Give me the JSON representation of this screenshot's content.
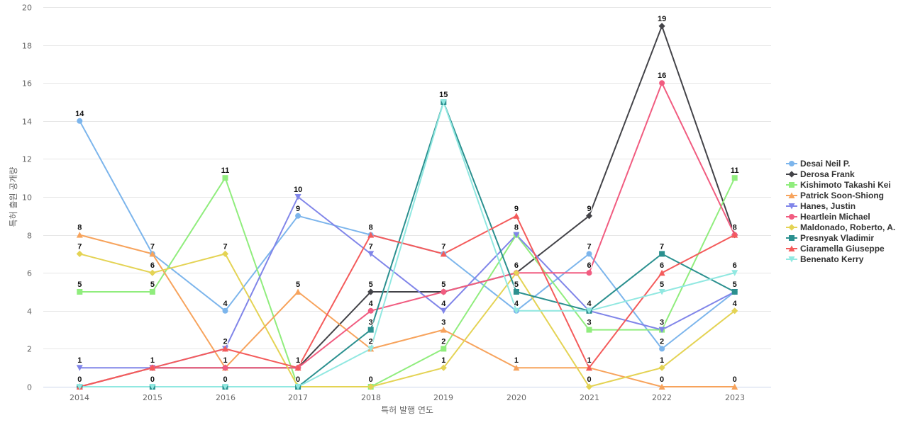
{
  "chart_data": {
    "type": "line",
    "title": "",
    "xlabel": "특허 발행 연도",
    "ylabel": "특허 출원 공개량",
    "ylim": [
      0,
      20
    ],
    "yticks": [
      0,
      2,
      4,
      6,
      8,
      10,
      12,
      14,
      16,
      18,
      20
    ],
    "x": [
      "2014",
      "2015",
      "2016",
      "2017",
      "2018",
      "2019",
      "2020",
      "2021",
      "2022",
      "2023"
    ],
    "grid": true,
    "legend": "right",
    "series": [
      {
        "name": "Desai Neil P.",
        "color": "#7cb5ec",
        "marker": "circle",
        "values": [
          14,
          7,
          4,
          9,
          8,
          7,
          4,
          7,
          2,
          5
        ]
      },
      {
        "name": "Derosa Frank",
        "color": "#434348",
        "marker": "diamond",
        "values": [
          0,
          1,
          1,
          1,
          5,
          5,
          6,
          9,
          19,
          8
        ]
      },
      {
        "name": "Kishimoto Takashi Kei",
        "color": "#90ed7d",
        "marker": "square",
        "values": [
          5,
          5,
          11,
          0,
          0,
          2,
          8,
          3,
          3,
          11
        ]
      },
      {
        "name": "Patrick Soon-Shiong",
        "color": "#f7a35c",
        "marker": "triangle",
        "values": [
          8,
          7,
          1,
          5,
          2,
          3,
          1,
          1,
          0,
          0
        ]
      },
      {
        "name": "Hanes, Justin",
        "color": "#8085e9",
        "marker": "triangle-down",
        "values": [
          1,
          1,
          2,
          10,
          7,
          4,
          8,
          4,
          3,
          5
        ]
      },
      {
        "name": "Heartlein Michael",
        "color": "#f15c80",
        "marker": "circle",
        "values": [
          0,
          1,
          1,
          1,
          4,
          5,
          6,
          6,
          16,
          8
        ]
      },
      {
        "name": "Maldonado, Roberto, A.",
        "color": "#e4d354",
        "marker": "diamond",
        "values": [
          7,
          6,
          7,
          0,
          0,
          1,
          6,
          0,
          1,
          4
        ]
      },
      {
        "name": "Presnyak Vladimir",
        "color": "#2b908f",
        "marker": "square",
        "values": [
          0,
          0,
          0,
          0,
          3,
          15,
          5,
          4,
          7,
          5
        ]
      },
      {
        "name": "Ciaramella Giuseppe",
        "color": "#f45b5b",
        "marker": "triangle",
        "values": [
          0,
          1,
          2,
          1,
          8,
          7,
          9,
          1,
          6,
          8
        ]
      },
      {
        "name": "Benenato Kerry",
        "color": "#91e8e1",
        "marker": "triangle-down",
        "values": [
          0,
          0,
          0,
          0,
          2,
          15,
          4,
          4,
          5,
          6
        ]
      }
    ],
    "data_labels": [
      [
        "2014",
        14
      ],
      [
        "2014",
        8
      ],
      [
        "2014",
        7
      ],
      [
        "2014",
        5
      ],
      [
        "2014",
        1
      ],
      [
        "2014",
        0
      ],
      [
        "2015",
        7
      ],
      [
        "2015",
        6
      ],
      [
        "2015",
        5
      ],
      [
        "2015",
        1
      ],
      [
        "2015",
        0
      ],
      [
        "2016",
        11
      ],
      [
        "2016",
        7
      ],
      [
        "2016",
        4
      ],
      [
        "2016",
        2
      ],
      [
        "2016",
        1
      ],
      [
        "2016",
        0
      ],
      [
        "2017",
        10
      ],
      [
        "2017",
        9
      ],
      [
        "2017",
        5
      ],
      [
        "2017",
        1
      ],
      [
        "2017",
        0
      ],
      [
        "2018",
        8
      ],
      [
        "2018",
        7
      ],
      [
        "2018",
        5
      ],
      [
        "2018",
        4
      ],
      [
        "2018",
        3
      ],
      [
        "2018",
        2
      ],
      [
        "2018",
        0
      ],
      [
        "2019",
        15
      ],
      [
        "2019",
        7
      ],
      [
        "2019",
        5
      ],
      [
        "2019",
        4
      ],
      [
        "2019",
        3
      ],
      [
        "2019",
        2
      ],
      [
        "2019",
        1
      ],
      [
        "2020",
        9
      ],
      [
        "2020",
        8
      ],
      [
        "2020",
        6
      ],
      [
        "2020",
        5
      ],
      [
        "2020",
        4
      ],
      [
        "2020",
        1
      ],
      [
        "2021",
        9
      ],
      [
        "2021",
        7
      ],
      [
        "2021",
        6
      ],
      [
        "2021",
        4
      ],
      [
        "2021",
        3
      ],
      [
        "2021",
        1
      ],
      [
        "2021",
        0
      ],
      [
        "2022",
        19
      ],
      [
        "2022",
        16
      ],
      [
        "2022",
        7
      ],
      [
        "2022",
        6
      ],
      [
        "2022",
        5
      ],
      [
        "2022",
        3
      ],
      [
        "2022",
        2
      ],
      [
        "2022",
        1
      ],
      [
        "2022",
        0
      ],
      [
        "2023",
        11
      ],
      [
        "2023",
        8
      ],
      [
        "2023",
        6
      ],
      [
        "2023",
        5
      ],
      [
        "2023",
        4
      ],
      [
        "2023",
        0
      ]
    ]
  }
}
